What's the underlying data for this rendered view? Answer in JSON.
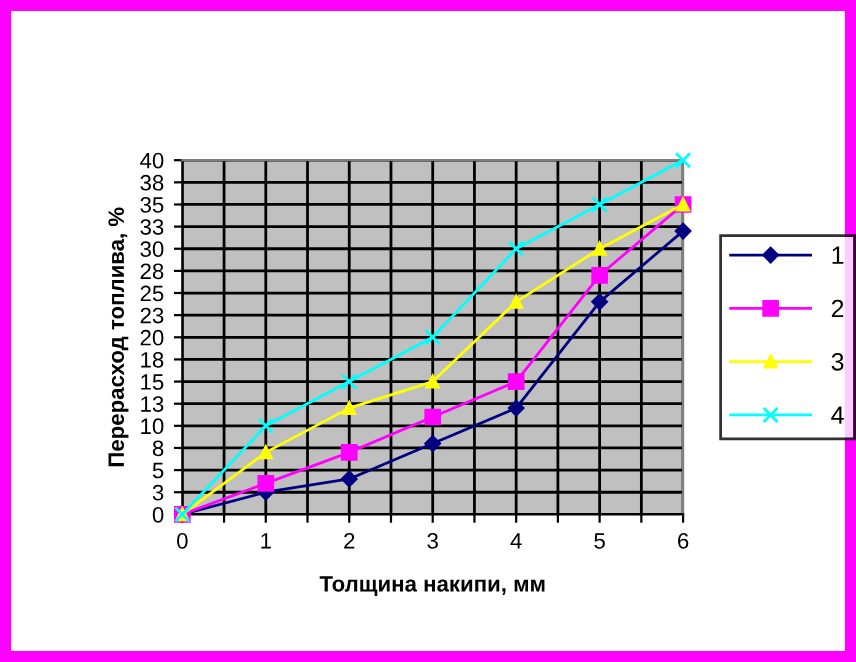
{
  "chart_data": {
    "type": "line",
    "xlabel": "Толщина накипи, мм",
    "ylabel": "Перерасход топлива, %",
    "x": [
      0,
      1,
      2,
      3,
      4,
      5,
      6
    ],
    "series": [
      {
        "name": "1",
        "color": "#000080",
        "marker": "diamond",
        "values": [
          0,
          2.5,
          4,
          8,
          12,
          24,
          32
        ]
      },
      {
        "name": "2",
        "color": "#ff00ff",
        "marker": "square",
        "values": [
          0,
          3.5,
          7,
          11,
          15,
          27,
          35
        ]
      },
      {
        "name": "3",
        "color": "#ffff00",
        "marker": "triangle",
        "values": [
          0,
          7,
          12,
          15,
          24,
          30,
          35
        ]
      },
      {
        "name": "4",
        "color": "#00ffff",
        "marker": "cross",
        "values": [
          0,
          10,
          15,
          20,
          30,
          35,
          40
        ]
      }
    ],
    "xlim": [
      0,
      6
    ],
    "xticks": [
      0,
      {
        "value": 0.5,
        "label": null
      },
      1,
      {
        "value": 1.5,
        "label": null
      },
      2,
      {
        "value": 2.5,
        "label": null
      },
      3,
      {
        "value": 3.5,
        "label": null
      },
      4,
      {
        "value": 4.5,
        "label": null
      },
      5,
      {
        "value": 5.5,
        "label": null
      },
      6
    ],
    "ylim": [
      0,
      40
    ],
    "yticks": [
      0,
      {
        "value": 2.5,
        "label": "3"
      },
      5,
      {
        "value": 7.5,
        "label": "8"
      },
      10,
      {
        "value": 12.5,
        "label": "13"
      },
      15,
      {
        "value": 17.5,
        "label": "18"
      },
      20,
      {
        "value": 22.5,
        "label": "23"
      },
      25,
      {
        "value": 27.5,
        "label": "28"
      },
      30,
      {
        "value": 32.5,
        "label": "33"
      },
      35,
      {
        "value": 37.5,
        "label": "38"
      },
      40
    ],
    "grid": true,
    "legend": "right"
  }
}
